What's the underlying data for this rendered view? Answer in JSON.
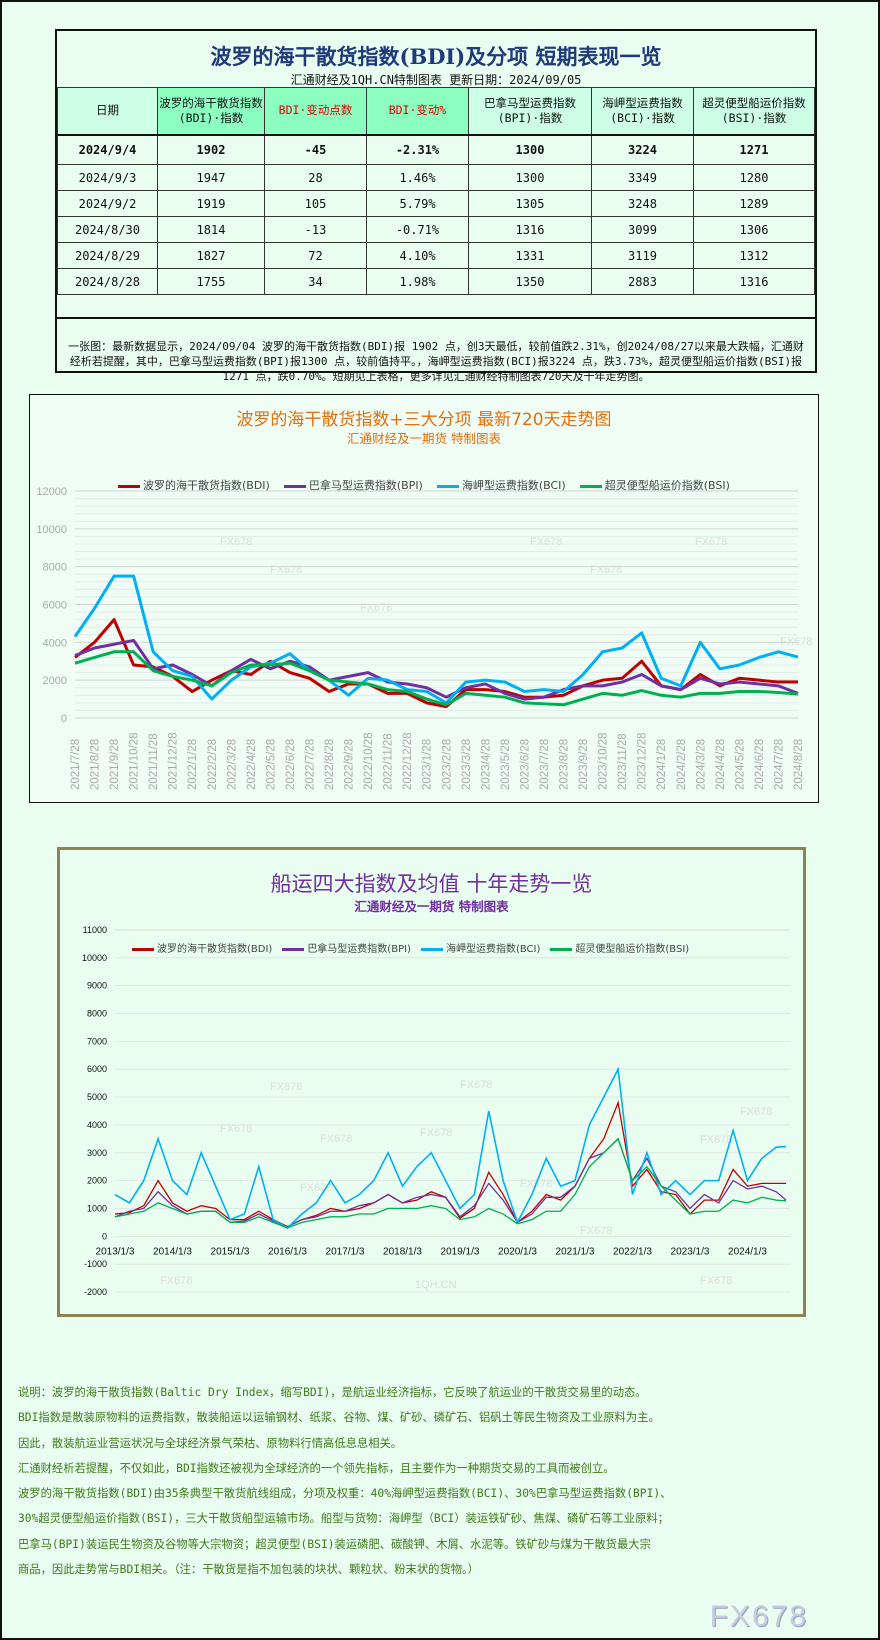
{
  "table": {
    "title": "波罗的海干散货指数(BDI)及分项 短期表现一览",
    "subtitle": "汇通财经及1QH.CN特制图表    更新日期：2024/09/05",
    "headers": [
      "日期",
      "波罗的海干散货指数(BDI)·指数",
      "BDI·变动点数",
      "BDI·变动%",
      "巴拿马型运费指数(BPI)·指数",
      "海岬型运费指数(BCI)·指数",
      "超灵便型船运价指数(BSI)·指数"
    ],
    "rows": [
      [
        "2024/9/4",
        "1902",
        "-45",
        "-2.31%",
        "1300",
        "3224",
        "1271"
      ],
      [
        "2024/9/3",
        "1947",
        "28",
        "1.46%",
        "1300",
        "3349",
        "1280"
      ],
      [
        "2024/9/2",
        "1919",
        "105",
        "5.79%",
        "1305",
        "3248",
        "1289"
      ],
      [
        "2024/8/30",
        "1814",
        "-13",
        "-0.71%",
        "1316",
        "3099",
        "1306"
      ],
      [
        "2024/8/29",
        "1827",
        "72",
        "4.10%",
        "1331",
        "3119",
        "1312"
      ],
      [
        "2024/8/28",
        "1755",
        "34",
        "1.98%",
        "1350",
        "2883",
        "1316"
      ]
    ],
    "summary": "一张图：最新数据显示，2024/09/04 波罗的海干散货指数(BDI)报 1902 点，创3天最低，较前值跌2.31%，创2024/08/27以来最大跌幅，汇通财经析若提醒，其中，巴拿马型运费指数(BPI)报1300 点，较前值持平。，海岬型运费指数(BCI)报3224 点，跌3.73%，超灵便型船运价指数(BSI)报1271 点，跌0.70%。短期见上表格，更多详见汇通财经特制图表720天及十年走势图。"
  },
  "colors": {
    "BDI": "#c00000",
    "BPI": "#7030a0",
    "BCI": "#00b0f0",
    "BSI": "#00b050"
  },
  "watermark": "FX678",
  "watermark2": "1QH.CN",
  "chart_data": [
    {
      "type": "line",
      "title": "波罗的海干散货指数+三大分项  最新720天走势图",
      "subtitle": "汇通财经及一期货  特制图表",
      "legend_position": "top",
      "grid": true,
      "ylim": [
        0,
        12000
      ],
      "yticks": [
        0,
        2000,
        4000,
        6000,
        8000,
        10000,
        12000
      ],
      "categories": [
        "2021/7/28",
        "2021/8/28",
        "2021/9/28",
        "2021/10/28",
        "2021/11/28",
        "2021/12/28",
        "2022/1/28",
        "2022/2/28",
        "2022/3/28",
        "2022/4/28",
        "2022/5/28",
        "2022/6/28",
        "2022/7/28",
        "2022/8/28",
        "2022/9/28",
        "2022/10/28",
        "2022/11/28",
        "2022/12/28",
        "2023/1/28",
        "2023/2/28",
        "2023/3/28",
        "2023/4/28",
        "2023/5/28",
        "2023/6/28",
        "2023/7/28",
        "2023/8/28",
        "2023/9/28",
        "2023/10/28",
        "2023/11/28",
        "2023/12/28",
        "2024/1/28",
        "2024/2/28",
        "2024/3/28",
        "2024/4/28",
        "2024/5/28",
        "2024/6/28",
        "2024/7/28",
        "2024/8/28"
      ],
      "series": [
        {
          "name": "波罗的海干散货指数(BDI)",
          "key": "BDI",
          "values": [
            3200,
            4000,
            5200,
            2800,
            2700,
            2200,
            1400,
            2000,
            2500,
            2300,
            3000,
            2400,
            2100,
            1400,
            1800,
            1800,
            1300,
            1300,
            800,
            600,
            1500,
            1500,
            1400,
            1100,
            1100,
            1200,
            1700,
            2000,
            2100,
            3000,
            1700,
            1500,
            2300,
            1700,
            2100,
            2000,
            1900,
            1900
          ]
        },
        {
          "name": "巴拿马型运费指数(BPI)",
          "key": "BPI",
          "values": [
            3300,
            3700,
            3900,
            4100,
            2600,
            2800,
            2300,
            1700,
            2500,
            3100,
            2600,
            3000,
            2700,
            2000,
            2200,
            2400,
            1900,
            1800,
            1600,
            1100,
            1600,
            1800,
            1300,
            1000,
            1100,
            1500,
            1700,
            1700,
            1900,
            2300,
            1700,
            1500,
            2100,
            1800,
            1900,
            1800,
            1700,
            1300
          ]
        },
        {
          "name": "海岬型运费指数(BCI)",
          "key": "BCI",
          "values": [
            4300,
            5800,
            7500,
            7500,
            3500,
            2500,
            2200,
            1000,
            2000,
            2700,
            2900,
            3400,
            2500,
            2000,
            1200,
            2100,
            2000,
            1500,
            1400,
            800,
            1900,
            2000,
            1900,
            1400,
            1500,
            1400,
            2300,
            3500,
            3700,
            4500,
            2100,
            1700,
            4000,
            2600,
            2800,
            3200,
            3500,
            3224
          ]
        },
        {
          "name": "超灵便型船运价指数(BSI)",
          "key": "BSI",
          "values": [
            2900,
            3200,
            3500,
            3500,
            2500,
            2200,
            2000,
            1700,
            2400,
            2800,
            2800,
            2900,
            2500,
            2000,
            1900,
            1800,
            1500,
            1400,
            1000,
            700,
            1300,
            1200,
            1100,
            800,
            750,
            700,
            1000,
            1300,
            1200,
            1450,
            1200,
            1100,
            1300,
            1300,
            1400,
            1400,
            1350,
            1271
          ]
        }
      ]
    },
    {
      "type": "line",
      "title": "船运四大指数及均值 十年走势一览",
      "subtitle": "汇通财经及一期货 特制图表",
      "legend_position": "top",
      "grid": true,
      "ylim": [
        -2000,
        11000
      ],
      "yticks": [
        -2000,
        -1000,
        0,
        1000,
        2000,
        3000,
        4000,
        5000,
        6000,
        7000,
        8000,
        9000,
        10000,
        11000
      ],
      "xticks": [
        "2013/1/3",
        "2014/1/3",
        "2015/1/3",
        "2016/1/3",
        "2017/1/3",
        "2018/1/3",
        "2019/1/3",
        "2020/1/3",
        "2021/1/3",
        "2022/1/3",
        "2023/1/3",
        "2024/1/3"
      ],
      "x": [
        2013.0,
        2013.25,
        2013.5,
        2013.75,
        2014.0,
        2014.25,
        2014.5,
        2014.75,
        2015.0,
        2015.25,
        2015.5,
        2015.75,
        2016.0,
        2016.25,
        2016.5,
        2016.75,
        2017.0,
        2017.25,
        2017.5,
        2017.75,
        2018.0,
        2018.25,
        2018.5,
        2018.75,
        2019.0,
        2019.25,
        2019.5,
        2019.75,
        2020.0,
        2020.25,
        2020.5,
        2020.75,
        2021.0,
        2021.25,
        2021.5,
        2021.75,
        2022.0,
        2022.25,
        2022.5,
        2022.75,
        2023.0,
        2023.25,
        2023.5,
        2023.75,
        2024.0,
        2024.25,
        2024.5,
        2024.67
      ],
      "series": [
        {
          "name": "波罗的海干散货指数(BDI)",
          "key": "BDI",
          "values": [
            800,
            850,
            1100,
            2000,
            1200,
            900,
            1100,
            1000,
            600,
            600,
            900,
            600,
            350,
            600,
            750,
            1000,
            900,
            1000,
            1200,
            1500,
            1200,
            1300,
            1600,
            1400,
            650,
            1000,
            2300,
            1500,
            500,
            900,
            1500,
            1300,
            1800,
            2800,
            3500,
            4800,
            1800,
            2400,
            1600,
            1500,
            800,
            1300,
            1300,
            2400,
            1800,
            1900,
            1900,
            1902
          ]
        },
        {
          "name": "巴拿马型运费指数(BPI)",
          "key": "BPI",
          "values": [
            700,
            900,
            1000,
            1600,
            1100,
            800,
            900,
            900,
            500,
            550,
            800,
            550,
            350,
            600,
            700,
            900,
            900,
            1100,
            1200,
            1500,
            1200,
            1400,
            1500,
            1400,
            700,
            1100,
            1900,
            1300,
            500,
            800,
            1400,
            1400,
            1800,
            2800,
            3000,
            3500,
            2000,
            2800,
            1800,
            1600,
            1000,
            1500,
            1200,
            2000,
            1700,
            1800,
            1600,
            1300
          ]
        },
        {
          "name": "海岬型运费指数(BCI)",
          "key": "BCI",
          "values": [
            1500,
            1200,
            2000,
            3500,
            2000,
            1500,
            3000,
            1800,
            600,
            800,
            2500,
            600,
            300,
            800,
            1200,
            2000,
            1200,
            1500,
            2000,
            3000,
            1800,
            2500,
            3000,
            2000,
            1000,
            1500,
            4500,
            2000,
            500,
            1500,
            2800,
            1800,
            2000,
            4000,
            5000,
            6000,
            1500,
            3000,
            1500,
            2000,
            1500,
            2000,
            2000,
            3800,
            2000,
            2800,
            3200,
            3224
          ]
        },
        {
          "name": "超灵便型船运价指数(BSI)",
          "key": "BSI",
          "values": [
            700,
            800,
            900,
            1200,
            1000,
            800,
            900,
            900,
            500,
            500,
            700,
            500,
            300,
            500,
            600,
            700,
            700,
            800,
            800,
            1000,
            1000,
            1000,
            1100,
            1000,
            600,
            700,
            1000,
            800,
            450,
            600,
            900,
            900,
            1500,
            2500,
            3000,
            3500,
            2000,
            2500,
            1800,
            1300,
            800,
            900,
            900,
            1300,
            1200,
            1400,
            1300,
            1271
          ]
        }
      ]
    }
  ],
  "notes": [
    "说明：波罗的海干散货指数(Baltic Dry Index，缩写BDI)，是航运业经济指标，它反映了航运业的干散货交易里的动态。",
    "BDI指数是散装原物料的运费指数，散装船运以运输钢材、纸浆、谷物、煤、矿砂、磷矿石、铝矾土等民生物资及工业原料为主。",
    "因此，散装航运业营运状况与全球经济景气荣枯、原物料行情高低息息相关。",
    "汇通财经析若提醒，不仅如此，BDI指数还被视为全球经济的一个领先指标，且主要作为一种期货交易的工具而被创立。",
    "波罗的海干散货指数(BDI)由35条典型干散货航线组成，分项及权重：40%海岬型运费指数(BCI)、30%巴拿马型运费指数(BPI)、",
    "30%超灵便型船运价指数(BSI)，三大干散货船型运输市场。船型与货物：海岬型（BCI）装运铁矿砂、焦煤、磷矿石等工业原料；",
    "巴拿马(BPI)装运民生物资及谷物等大宗物资；超灵便型(BSI)装运磷肥、碳酸钾、木屑、水泥等。铁矿砂与煤为干散货最大宗",
    "商品，因此走势常与BDI相关。（注：干散货是指不加包装的块状、颗粒状、粉末状的货物。）"
  ]
}
